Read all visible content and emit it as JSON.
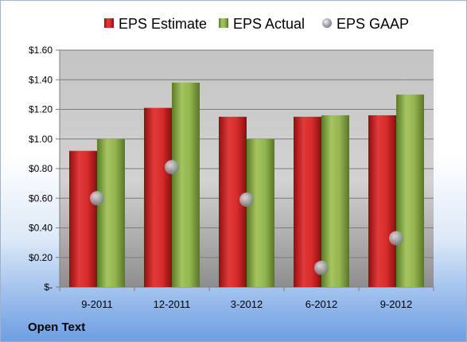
{
  "company": "Open Text",
  "colors": {
    "estimate": "#d42a2a",
    "actual": "#8cb04c",
    "gaap": "#b5b8bf"
  },
  "chart_data": {
    "type": "bar",
    "categories": [
      "9-2011",
      "12-2011",
      "3-2012",
      "6-2012",
      "9-2012"
    ],
    "series": [
      {
        "name": "EPS Estimate",
        "kind": "bar",
        "values": [
          0.92,
          1.21,
          1.15,
          1.15,
          1.16
        ]
      },
      {
        "name": "EPS Actual",
        "kind": "bar",
        "values": [
          1.0,
          1.38,
          1.0,
          1.16,
          1.3
        ]
      },
      {
        "name": "EPS GAAP",
        "kind": "point",
        "values": [
          0.6,
          0.81,
          0.59,
          0.13,
          0.33
        ]
      }
    ],
    "ylim": [
      0,
      1.6
    ],
    "yticks": [
      0,
      0.2,
      0.4,
      0.6,
      0.8,
      1.0,
      1.2,
      1.4,
      1.6
    ],
    "ytick_labels": [
      "$-",
      "$0.20",
      "$0.40",
      "$0.60",
      "$0.80",
      "$1.00",
      "$1.20",
      "$1.40",
      "$1.60"
    ],
    "grid": true,
    "legend": "top"
  }
}
